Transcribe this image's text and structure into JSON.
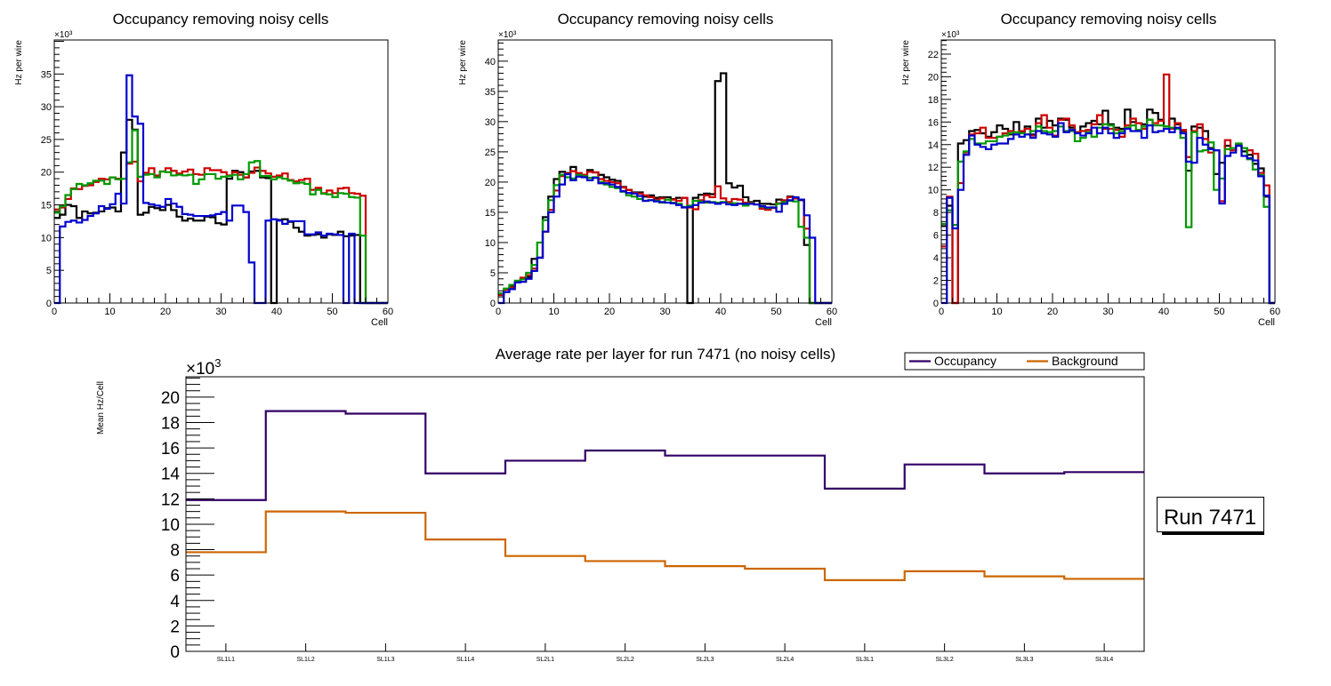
{
  "chart_data": [
    {
      "type": "histogram-step",
      "title": "Occupancy removing noisy cells",
      "xlabel": "Cell",
      "ylabel": "Hz per wire",
      "exponent_label": "×10³",
      "xlim": [
        0,
        60
      ],
      "ylim": [
        0,
        40.2
      ],
      "xticks": [
        0,
        10,
        20,
        30,
        40,
        50,
        60
      ],
      "yticks": [
        0,
        5,
        10,
        15,
        20,
        25,
        30,
        35
      ],
      "bins_start": 0,
      "series": [
        {
          "name": "black",
          "color": "#000000",
          "values": [
            13,
            13.5,
            15,
            14.8,
            13,
            14,
            13.7,
            13.8,
            14,
            14.5,
            14.6,
            14,
            23,
            28,
            26.5,
            13.5,
            13.8,
            14.7,
            14.5,
            14.2,
            15,
            14.2,
            13.2,
            12.6,
            12.9,
            12.6,
            12.6,
            13.2,
            13.1,
            12.2,
            12,
            19,
            20.2,
            20,
            19.2,
            20.1,
            20.2,
            19.2,
            19.1,
            0,
            12.7,
            12.8,
            12.4,
            11.5,
            10.9,
            10.3,
            10.4,
            10.5,
            10,
            10.5,
            10.4,
            10.9,
            10.2,
            10.3,
            10.4,
            0,
            0,
            0,
            0,
            0
          ]
        },
        {
          "name": "red",
          "color": "#cc0000",
          "values": [
            14.3,
            14.6,
            15.9,
            17.5,
            17.4,
            17.9,
            18,
            18.5,
            19,
            18.9,
            19.2,
            19,
            19,
            21.3,
            21.6,
            18.6,
            19.9,
            20.6,
            19.5,
            20.1,
            20.6,
            20.2,
            19.8,
            20.1,
            20.4,
            19.7,
            19.6,
            20.6,
            20.3,
            20.3,
            20,
            19.5,
            20,
            19.6,
            19.2,
            19.9,
            20.7,
            20.2,
            19.8,
            19.3,
            19.5,
            19.8,
            18.8,
            18.6,
            18.8,
            19,
            17.3,
            17.6,
            16.8,
            17.2,
            16.8,
            17.5,
            17.6,
            16.8,
            16.7,
            16.4,
            0,
            0,
            0,
            0
          ]
        },
        {
          "name": "green",
          "color": "#009900",
          "values": [
            13.8,
            14.8,
            16.5,
            17.4,
            18.2,
            18,
            18.3,
            18.7,
            18.7,
            18.2,
            19.2,
            18.9,
            19,
            21.5,
            26.4,
            19.3,
            19.6,
            19.7,
            19.2,
            20.1,
            20,
            19.5,
            19.6,
            19.5,
            19.6,
            18.2,
            18.9,
            19.7,
            19.7,
            19,
            19.3,
            19.4,
            19.6,
            18.9,
            19.7,
            21.5,
            21.7,
            19.4,
            19.4,
            18.9,
            19.2,
            19,
            18.7,
            18.3,
            18.4,
            18.2,
            16.6,
            17.3,
            16.7,
            16.6,
            16.2,
            16.8,
            16.7,
            16.2,
            16.1,
            10.3,
            0,
            0,
            0,
            0
          ]
        },
        {
          "name": "blue",
          "color": "#0000cc",
          "values": [
            0,
            11.7,
            12.4,
            12.6,
            12.3,
            12.7,
            13.3,
            13.7,
            14.8,
            14.4,
            15.1,
            16.7,
            15.2,
            34.8,
            28.5,
            27.4,
            15.3,
            15.1,
            14.9,
            14.7,
            15.9,
            15.2,
            14.7,
            13.6,
            13.5,
            13.3,
            13.3,
            13.3,
            13.4,
            13.6,
            13.9,
            12.6,
            14.9,
            14.9,
            13.9,
            6.2,
            0,
            0,
            12.6,
            12.8,
            12.6,
            12.1,
            12.5,
            12.5,
            12.5,
            10.5,
            10.5,
            10.8,
            10.3,
            10.6,
            10.5,
            10.4,
            0,
            10.6,
            0,
            0,
            0,
            0,
            0,
            0
          ]
        }
      ]
    },
    {
      "type": "histogram-step",
      "title": "Occupancy removing noisy cells",
      "xlabel": "Cell",
      "ylabel": "Hz per wire",
      "exponent_label": "×10³",
      "xlim": [
        0,
        60
      ],
      "ylim": [
        0,
        43.5
      ],
      "xticks": [
        0,
        10,
        20,
        30,
        40,
        50,
        60
      ],
      "yticks": [
        0,
        5,
        10,
        15,
        20,
        25,
        30,
        35,
        40
      ],
      "bins_start": 0,
      "series": [
        {
          "name": "black",
          "color": "#000000",
          "values": [
            1.5,
            2.2,
            2.8,
            3.5,
            4,
            4.3,
            7.3,
            7.5,
            14.2,
            17.6,
            20.5,
            21.7,
            21.5,
            22.5,
            21.4,
            21.1,
            22,
            21.6,
            21.2,
            20.8,
            20.4,
            20.2,
            19.2,
            18.7,
            18.3,
            18.3,
            17.6,
            17.8,
            17.4,
            17.5,
            17.5,
            17.2,
            17.4,
            17.4,
            0,
            17.4,
            17.9,
            18.1,
            18,
            36.7,
            38,
            19.8,
            19.1,
            19.4,
            17.5,
            16.7,
            16.9,
            16.4,
            16.4,
            16.3,
            17.1,
            16.9,
            17.6,
            17.3,
            17,
            9.6,
            0,
            0,
            0,
            0
          ]
        },
        {
          "name": "red",
          "color": "#cc0000",
          "values": [
            1.3,
            2.2,
            2.6,
            3.5,
            4.2,
            4.6,
            5.7,
            7.5,
            11.8,
            15.4,
            18.6,
            21,
            21.4,
            21.8,
            21.5,
            21.2,
            21.7,
            21.6,
            20.5,
            20.2,
            20,
            19.8,
            19.1,
            18.7,
            18.2,
            18.1,
            17.8,
            17.5,
            17.1,
            17.3,
            17.1,
            17.1,
            16.9,
            17.4,
            15.8,
            15.5,
            17,
            17.8,
            17.5,
            19.3,
            17.3,
            16.7,
            17.2,
            17.1,
            16.6,
            16.6,
            16.3,
            15.6,
            15.4,
            15.7,
            16.5,
            17,
            17.5,
            17.3,
            17.1,
            12.3,
            0,
            0,
            0,
            0
          ]
        },
        {
          "name": "green",
          "color": "#009900",
          "values": [
            1.6,
            2.4,
            3,
            3.7,
            3.9,
            5,
            6.3,
            10,
            13.7,
            17,
            19.5,
            21.2,
            20.8,
            20.6,
            21.2,
            21,
            20.7,
            20.8,
            20,
            19.6,
            19.2,
            19,
            18.4,
            17.8,
            17.6,
            17.2,
            16.9,
            17,
            16.9,
            16.6,
            17.1,
            16.6,
            16.4,
            15.9,
            16.1,
            16.9,
            16.8,
            16.6,
            16.7,
            16.6,
            16.7,
            16.4,
            16.5,
            16.4,
            16.1,
            16.5,
            16.3,
            15.9,
            15.7,
            15.8,
            16.4,
            16.7,
            16.9,
            16.8,
            12.6,
            10.8,
            0,
            0,
            0,
            0
          ]
        },
        {
          "name": "blue",
          "color": "#0000cc",
          "values": [
            0,
            1.8,
            2.3,
            3.4,
            3.5,
            4,
            5.3,
            7.5,
            11.8,
            15,
            17.6,
            19.6,
            21.3,
            20.3,
            20.9,
            20.8,
            20.3,
            20.7,
            19.8,
            19.8,
            19.6,
            19.2,
            18.5,
            18.2,
            18.1,
            17.7,
            16.9,
            17,
            16.8,
            16.7,
            16.6,
            16.5,
            16.2,
            15.8,
            15.9,
            16.2,
            16.6,
            16.8,
            16.6,
            16.4,
            16.6,
            16.3,
            16.2,
            16.4,
            16.4,
            16.4,
            16.3,
            16,
            15.8,
            15.8,
            15.1,
            16.4,
            17,
            17.5,
            17.1,
            14.5,
            10.8,
            0,
            0,
            0
          ]
        }
      ]
    },
    {
      "type": "histogram-step",
      "title": "Occupancy removing noisy cells",
      "xlabel": "Cell",
      "ylabel": "Hz per wire",
      "exponent_label": "×10³",
      "xlim": [
        0,
        60
      ],
      "ylim": [
        0,
        23.25
      ],
      "xticks": [
        0,
        10,
        20,
        30,
        40,
        50,
        60
      ],
      "yticks": [
        0,
        2,
        4,
        6,
        8,
        10,
        12,
        14,
        16,
        18,
        20,
        22
      ],
      "bins_start": 0,
      "series": [
        {
          "name": "black",
          "color": "#000000",
          "values": [
            6.8,
            8.6,
            0,
            14.1,
            14.4,
            15.2,
            15.3,
            15,
            14.7,
            15.1,
            15.7,
            15.4,
            14.9,
            16,
            15.1,
            15.6,
            14.9,
            16.3,
            15.5,
            16.1,
            15.7,
            16.3,
            16.2,
            15.5,
            15.1,
            15.6,
            15.9,
            16.1,
            15.8,
            17,
            15.8,
            15.5,
            15.4,
            17.1,
            16,
            15.9,
            15.8,
            17.1,
            16.8,
            16.2,
            15.6,
            16.3,
            15.8,
            15.2,
            11.7,
            15.6,
            15.5,
            15.2,
            13.7,
            11.4,
            12.4,
            13.9,
            13.7,
            13.9,
            13.4,
            13.1,
            12.3,
            11.9,
            9.4,
            0
          ]
        },
        {
          "name": "red",
          "color": "#cc0000",
          "values": [
            5,
            9.4,
            0,
            10.6,
            13.3,
            14.9,
            15,
            15.5,
            14.6,
            14.6,
            14.7,
            15,
            15.2,
            14.9,
            15.2,
            15.4,
            14.8,
            15.9,
            16.6,
            15.5,
            14.8,
            16.2,
            16.3,
            15.7,
            15.1,
            15.2,
            15.3,
            15.8,
            16.6,
            15.4,
            15.4,
            15.3,
            14.7,
            15.7,
            16.3,
            15.9,
            15.4,
            16.2,
            15.9,
            16.1,
            20.2,
            15.4,
            15.9,
            15.3,
            12.9,
            15.2,
            15.8,
            14.5,
            13.3,
            13.5,
            9,
            14.4,
            13.5,
            14,
            13.7,
            13.5,
            13.2,
            11.5,
            10.4,
            0
          ]
        },
        {
          "name": "green",
          "color": "#009900",
          "values": [
            7,
            8.2,
            6.9,
            12.5,
            13.4,
            14.5,
            14.1,
            14.1,
            14.3,
            14.3,
            14.7,
            14.8,
            15,
            15.1,
            15,
            14.9,
            15.2,
            15.6,
            15.2,
            15.1,
            15.2,
            15.6,
            15.2,
            15.2,
            14.3,
            14.6,
            15.1,
            14.7,
            15.5,
            15.8,
            15.7,
            15,
            15.2,
            15.5,
            15.7,
            15.3,
            15.6,
            16.2,
            15.7,
            15.7,
            15.6,
            15.5,
            15.4,
            14.6,
            6.7,
            15.1,
            13.4,
            13.5,
            14.2,
            10,
            11,
            13.6,
            13.7,
            14.1,
            13.7,
            12.7,
            11.8,
            11.3,
            8.5,
            0
          ]
        },
        {
          "name": "blue",
          "color": "#0000cc",
          "values": [
            0,
            9.3,
            6.6,
            10,
            13.1,
            14.8,
            14,
            13.8,
            13.6,
            14,
            14.1,
            14.1,
            14.5,
            14.9,
            14.7,
            14.9,
            14.6,
            15.2,
            15,
            14.9,
            14.7,
            15.9,
            15.1,
            15.3,
            15,
            14.8,
            15,
            15.5,
            15,
            15.5,
            15,
            14.6,
            15,
            15.4,
            15.2,
            15.2,
            14.6,
            15.7,
            15.1,
            15.2,
            15.4,
            15.1,
            15.5,
            15,
            12.5,
            12.4,
            14.6,
            14,
            13.6,
            13.5,
            8.8,
            13,
            13.3,
            13.9,
            13,
            12.8,
            12.6,
            11.2,
            9.5,
            0
          ]
        }
      ]
    },
    {
      "type": "histogram-step",
      "title": "Average rate per layer for run 7471 (no noisy cells)",
      "xlabel": "",
      "ylabel": "Mean Hz/Cell",
      "exponent_label": "×10",
      "exponent_sup": "3",
      "categories": [
        "SL1L1",
        "SL1L2",
        "SL1L3",
        "SL1L4",
        "SL2L1",
        "SL2L2",
        "SL2L3",
        "SL2L4",
        "SL3L1",
        "SL3L2",
        "SL3L3",
        "SL3L4"
      ],
      "ylim": [
        0,
        21.6
      ],
      "yticks": [
        0,
        2,
        4,
        6,
        8,
        10,
        12,
        14,
        16,
        18,
        20
      ],
      "legend_position": "top-right",
      "series": [
        {
          "name": "Occupancy",
          "color": "#330066",
          "values": [
            11.9,
            18.9,
            18.7,
            14.0,
            15.0,
            15.8,
            15.4,
            15.4,
            12.8,
            14.7,
            14.0,
            14.1
          ]
        },
        {
          "name": "Background",
          "color": "#cc6600",
          "values": [
            7.8,
            11.0,
            10.9,
            8.8,
            7.5,
            7.1,
            6.7,
            6.5,
            5.6,
            6.3,
            5.9,
            5.7
          ]
        }
      ],
      "annotation": "Run 7471"
    }
  ]
}
